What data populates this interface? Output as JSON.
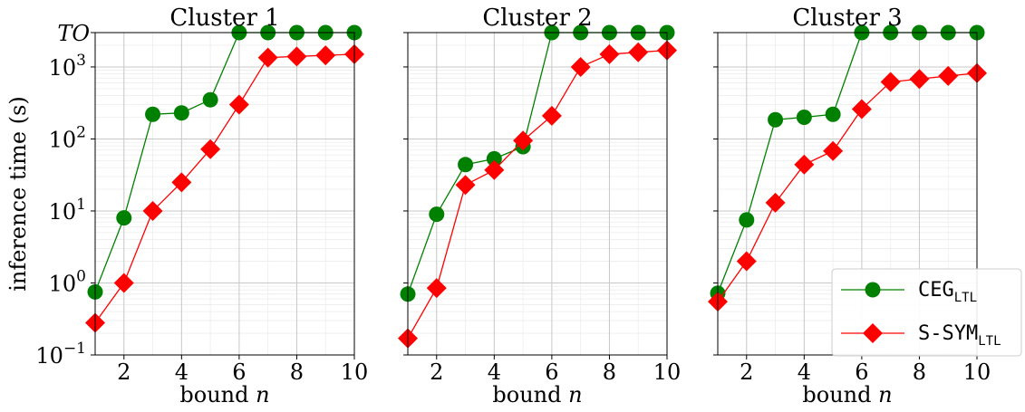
{
  "chart_data": {
    "type": "line",
    "ylabel": "inference time (s)",
    "y_scale": "log",
    "ylim": [
      0.1,
      3000
    ],
    "y_ticks": [
      {
        "value": 0.1,
        "base": "10",
        "exp": "−1"
      },
      {
        "value": 1,
        "base": "10",
        "exp": "0"
      },
      {
        "value": 10,
        "base": "10",
        "exp": "1"
      },
      {
        "value": 100,
        "base": "10",
        "exp": "2"
      },
      {
        "value": 1000,
        "base": "10",
        "exp": "3"
      }
    ],
    "timeout_label": "TO",
    "timeout_value": 3000,
    "xlim": [
      1,
      10
    ],
    "x_ticks": [
      "2",
      "4",
      "6",
      "8",
      "10"
    ],
    "grid": true,
    "legend": {
      "placement": "lower-right",
      "entries": [
        {
          "series": "CEG",
          "base": "CEG",
          "sub": "LTL"
        },
        {
          "series": "S-SYM",
          "base": "S-SYM",
          "sub": "LTL"
        }
      ]
    },
    "series_style": {
      "CEG": {
        "color": "#008000",
        "marker": "circle"
      },
      "S-SYM": {
        "color": "#ff0000",
        "marker": "diamond"
      }
    },
    "panels": [
      {
        "title": "Cluster 1",
        "xlabel_main": "bound",
        "xlabel_var": "n",
        "x": [
          1,
          2,
          3,
          4,
          5,
          6,
          7,
          8,
          9,
          10
        ],
        "series": [
          {
            "key": "CEG",
            "values": [
              0.75,
              8,
              220,
              230,
              350,
              3000,
              3000,
              3000,
              3000,
              3000
            ]
          },
          {
            "key": "S-SYM",
            "values": [
              0.28,
              1.0,
              10,
              25,
              72,
              300,
              1350,
              1400,
              1450,
              1500
            ]
          }
        ]
      },
      {
        "title": "Cluster 2",
        "xlabel_main": "bound",
        "xlabel_var": "n",
        "x": [
          1,
          2,
          3,
          4,
          5,
          6,
          7,
          8,
          9,
          10
        ],
        "series": [
          {
            "key": "CEG",
            "values": [
              0.7,
              9,
              44,
              53,
              78,
              3000,
              3000,
              3000,
              3000,
              3000
            ]
          },
          {
            "key": "S-SYM",
            "values": [
              0.17,
              0.85,
              23,
              37,
              95,
              210,
              1000,
              1500,
              1600,
              1700
            ]
          }
        ]
      },
      {
        "title": "Cluster 3",
        "xlabel_main": "bound",
        "xlabel_var": "n",
        "x": [
          1,
          2,
          3,
          4,
          5,
          6,
          7,
          8,
          9,
          10
        ],
        "series": [
          {
            "key": "CEG",
            "values": [
              0.72,
              7.5,
              185,
              200,
              220,
              3000,
              3000,
              3000,
              3000,
              3000
            ]
          },
          {
            "key": "S-SYM",
            "values": [
              0.55,
              2.0,
              13,
              44,
              68,
              260,
              620,
              680,
              750,
              820
            ]
          }
        ]
      }
    ]
  }
}
